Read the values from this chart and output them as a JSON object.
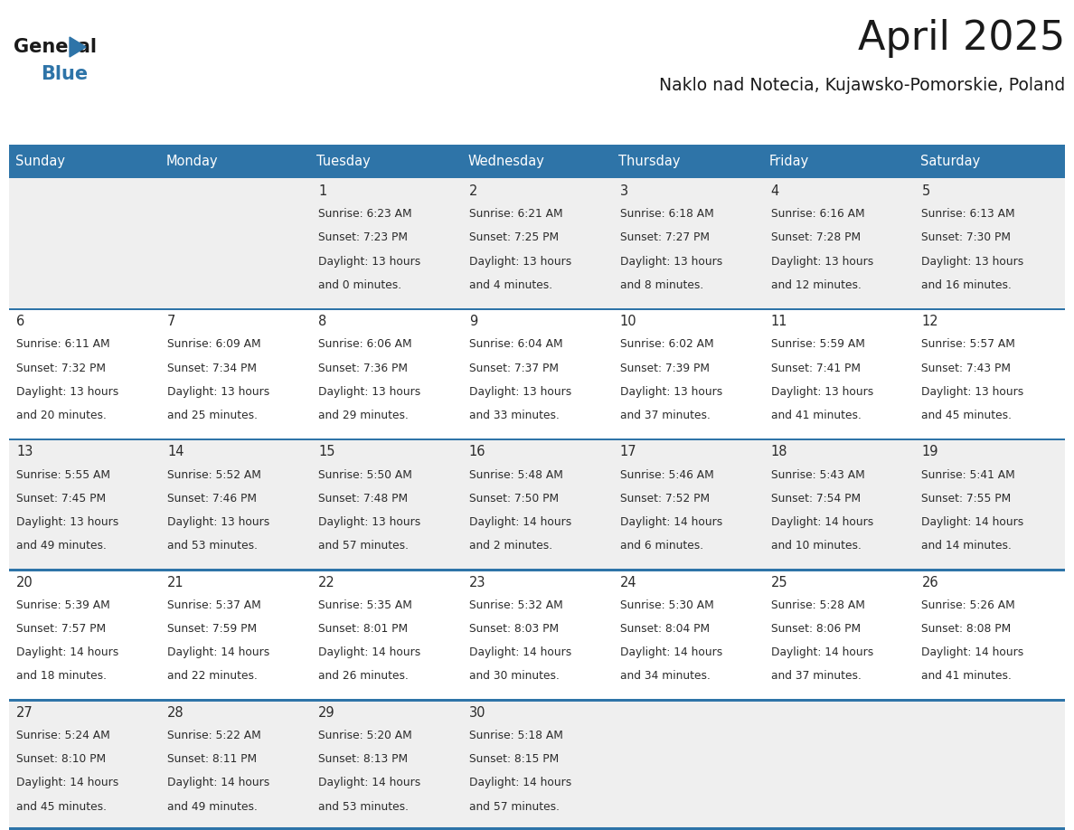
{
  "title": "April 2025",
  "subtitle": "Naklo nad Notecia, Kujawsko-Pomorskie, Poland",
  "header_bg_color": "#2E74A8",
  "header_text_color": "#FFFFFF",
  "odd_row_bg": "#EFEFEF",
  "even_row_bg": "#FFFFFF",
  "cell_text_color": "#2B2B2B",
  "day_names": [
    "Sunday",
    "Monday",
    "Tuesday",
    "Wednesday",
    "Thursday",
    "Friday",
    "Saturday"
  ],
  "calendar": [
    [
      {
        "day": "",
        "sunrise": "",
        "sunset": "",
        "daylight": ""
      },
      {
        "day": "",
        "sunrise": "",
        "sunset": "",
        "daylight": ""
      },
      {
        "day": "1",
        "sunrise": "6:23 AM",
        "sunset": "7:23 PM",
        "daylight": "13 hours\nand 0 minutes."
      },
      {
        "day": "2",
        "sunrise": "6:21 AM",
        "sunset": "7:25 PM",
        "daylight": "13 hours\nand 4 minutes."
      },
      {
        "day": "3",
        "sunrise": "6:18 AM",
        "sunset": "7:27 PM",
        "daylight": "13 hours\nand 8 minutes."
      },
      {
        "day": "4",
        "sunrise": "6:16 AM",
        "sunset": "7:28 PM",
        "daylight": "13 hours\nand 12 minutes."
      },
      {
        "day": "5",
        "sunrise": "6:13 AM",
        "sunset": "7:30 PM",
        "daylight": "13 hours\nand 16 minutes."
      }
    ],
    [
      {
        "day": "6",
        "sunrise": "6:11 AM",
        "sunset": "7:32 PM",
        "daylight": "13 hours\nand 20 minutes."
      },
      {
        "day": "7",
        "sunrise": "6:09 AM",
        "sunset": "7:34 PM",
        "daylight": "13 hours\nand 25 minutes."
      },
      {
        "day": "8",
        "sunrise": "6:06 AM",
        "sunset": "7:36 PM",
        "daylight": "13 hours\nand 29 minutes."
      },
      {
        "day": "9",
        "sunrise": "6:04 AM",
        "sunset": "7:37 PM",
        "daylight": "13 hours\nand 33 minutes."
      },
      {
        "day": "10",
        "sunrise": "6:02 AM",
        "sunset": "7:39 PM",
        "daylight": "13 hours\nand 37 minutes."
      },
      {
        "day": "11",
        "sunrise": "5:59 AM",
        "sunset": "7:41 PM",
        "daylight": "13 hours\nand 41 minutes."
      },
      {
        "day": "12",
        "sunrise": "5:57 AM",
        "sunset": "7:43 PM",
        "daylight": "13 hours\nand 45 minutes."
      }
    ],
    [
      {
        "day": "13",
        "sunrise": "5:55 AM",
        "sunset": "7:45 PM",
        "daylight": "13 hours\nand 49 minutes."
      },
      {
        "day": "14",
        "sunrise": "5:52 AM",
        "sunset": "7:46 PM",
        "daylight": "13 hours\nand 53 minutes."
      },
      {
        "day": "15",
        "sunrise": "5:50 AM",
        "sunset": "7:48 PM",
        "daylight": "13 hours\nand 57 minutes."
      },
      {
        "day": "16",
        "sunrise": "5:48 AM",
        "sunset": "7:50 PM",
        "daylight": "14 hours\nand 2 minutes."
      },
      {
        "day": "17",
        "sunrise": "5:46 AM",
        "sunset": "7:52 PM",
        "daylight": "14 hours\nand 6 minutes."
      },
      {
        "day": "18",
        "sunrise": "5:43 AM",
        "sunset": "7:54 PM",
        "daylight": "14 hours\nand 10 minutes."
      },
      {
        "day": "19",
        "sunrise": "5:41 AM",
        "sunset": "7:55 PM",
        "daylight": "14 hours\nand 14 minutes."
      }
    ],
    [
      {
        "day": "20",
        "sunrise": "5:39 AM",
        "sunset": "7:57 PM",
        "daylight": "14 hours\nand 18 minutes."
      },
      {
        "day": "21",
        "sunrise": "5:37 AM",
        "sunset": "7:59 PM",
        "daylight": "14 hours\nand 22 minutes."
      },
      {
        "day": "22",
        "sunrise": "5:35 AM",
        "sunset": "8:01 PM",
        "daylight": "14 hours\nand 26 minutes."
      },
      {
        "day": "23",
        "sunrise": "5:32 AM",
        "sunset": "8:03 PM",
        "daylight": "14 hours\nand 30 minutes."
      },
      {
        "day": "24",
        "sunrise": "5:30 AM",
        "sunset": "8:04 PM",
        "daylight": "14 hours\nand 34 minutes."
      },
      {
        "day": "25",
        "sunrise": "5:28 AM",
        "sunset": "8:06 PM",
        "daylight": "14 hours\nand 37 minutes."
      },
      {
        "day": "26",
        "sunrise": "5:26 AM",
        "sunset": "8:08 PM",
        "daylight": "14 hours\nand 41 minutes."
      }
    ],
    [
      {
        "day": "27",
        "sunrise": "5:24 AM",
        "sunset": "8:10 PM",
        "daylight": "14 hours\nand 45 minutes."
      },
      {
        "day": "28",
        "sunrise": "5:22 AM",
        "sunset": "8:11 PM",
        "daylight": "14 hours\nand 49 minutes."
      },
      {
        "day": "29",
        "sunrise": "5:20 AM",
        "sunset": "8:13 PM",
        "daylight": "14 hours\nand 53 minutes."
      },
      {
        "day": "30",
        "sunrise": "5:18 AM",
        "sunset": "8:15 PM",
        "daylight": "14 hours\nand 57 minutes."
      },
      {
        "day": "",
        "sunrise": "",
        "sunset": "",
        "daylight": ""
      },
      {
        "day": "",
        "sunrise": "",
        "sunset": "",
        "daylight": ""
      },
      {
        "day": "",
        "sunrise": "",
        "sunset": "",
        "daylight": ""
      }
    ]
  ]
}
